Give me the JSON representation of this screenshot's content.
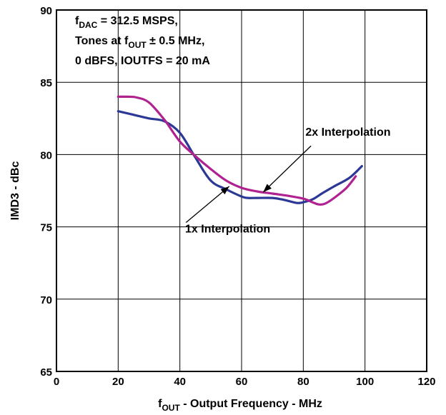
{
  "chart_data": {
    "type": "line",
    "title": "",
    "xlabel": {
      "main": "f",
      "sub": "OUT",
      "rest": " - Output Frequency - MHz"
    },
    "ylabel": "IMD3 - dBc",
    "xlim": [
      0,
      120
    ],
    "ylim": [
      65,
      90
    ],
    "x_ticks": [
      0,
      20,
      40,
      60,
      80,
      100,
      120
    ],
    "y_ticks": [
      65,
      70,
      75,
      80,
      85,
      90
    ],
    "grid": true,
    "conditions": [
      {
        "main": "f",
        "sub": "DAC",
        "rest": " = 312.5 MSPS,"
      },
      {
        "main": "Tones at f",
        "sub": "OUT",
        "rest": " ± 0.5 MHz,"
      },
      {
        "main": "0 dBFS, IOUTFS = 20 mA",
        "sub": "",
        "rest": ""
      }
    ],
    "series": [
      {
        "name": "1x Interpolation",
        "color": "#2b3896",
        "x": [
          20,
          25,
          30,
          35,
          40,
          45,
          50,
          55,
          60,
          62,
          65,
          70,
          73,
          75,
          78,
          80,
          83,
          86,
          90,
          95,
          99
        ],
        "y": [
          83.0,
          82.75,
          82.5,
          82.3,
          81.5,
          79.8,
          78.2,
          77.6,
          77.1,
          77.0,
          77.0,
          77.0,
          76.9,
          76.8,
          76.65,
          76.7,
          76.9,
          77.3,
          77.8,
          78.4,
          79.2
        ]
      },
      {
        "name": "2x Interpolation",
        "color": "#b0228f",
        "x": [
          20,
          23,
          26,
          30,
          35,
          40,
          45,
          50,
          55,
          60,
          65,
          70,
          75,
          80,
          83,
          85,
          87,
          90,
          94,
          97
        ],
        "y": [
          84.0,
          84.0,
          83.95,
          83.6,
          82.4,
          80.9,
          79.9,
          79.0,
          78.2,
          77.7,
          77.45,
          77.3,
          77.15,
          76.95,
          76.7,
          76.55,
          76.6,
          77.0,
          77.7,
          78.5
        ]
      }
    ],
    "annotations": [
      {
        "series": 1,
        "text": "2x Interpolation",
        "text_at": [
          94.5,
          81.3
        ],
        "arrow_from": [
          82.5,
          80.6
        ],
        "arrow_to": [
          67.0,
          77.4
        ]
      },
      {
        "series": 0,
        "text": "1x Interpolation",
        "text_at": [
          55.5,
          74.6
        ],
        "arrow_from": [
          42.0,
          75.3
        ],
        "arrow_to": [
          56.0,
          77.8
        ]
      }
    ]
  }
}
